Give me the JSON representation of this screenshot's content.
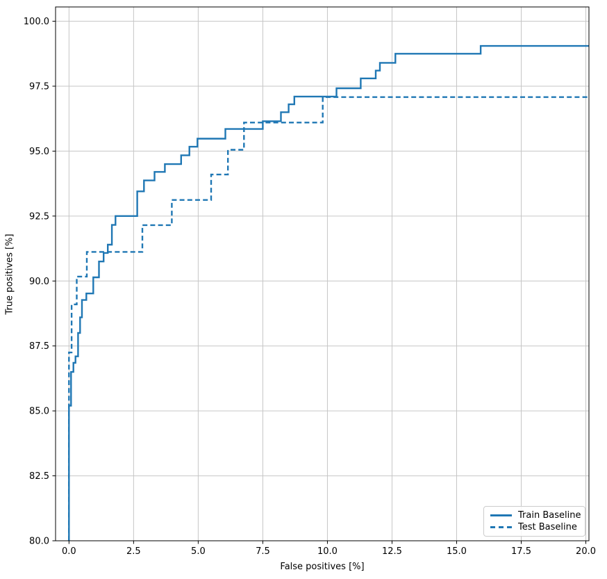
{
  "chart_data": {
    "type": "line",
    "subtype": "step-post",
    "title": "",
    "xlabel": "False positives [%]",
    "ylabel": "True positives [%]",
    "xlim": [
      -0.52,
      20.12
    ],
    "ylim": [
      80.0,
      100.55
    ],
    "grid": true,
    "legend_position": "lower right",
    "line_color": "#1f77b4",
    "grid_color": "#c6c6c6",
    "spine_color": "#000000",
    "x_ticks": [
      0.0,
      2.5,
      5.0,
      7.5,
      10.0,
      12.5,
      15.0,
      17.5,
      20.0
    ],
    "x_tick_labels": [
      "0.0",
      "2.5",
      "5.0",
      "7.5",
      "10.0",
      "12.5",
      "15.0",
      "17.5",
      "20.0"
    ],
    "y_ticks": [
      80.0,
      82.5,
      85.0,
      87.5,
      90.0,
      92.5,
      95.0,
      97.5,
      100.0
    ],
    "y_tick_labels": [
      "80.0",
      "82.5",
      "85.0",
      "87.5",
      "90.0",
      "92.5",
      "95.0",
      "97.5",
      "100.0"
    ],
    "series": [
      {
        "name": "Train Baseline",
        "style": "solid",
        "color": "#1f77b4",
        "points": [
          [
            0.0,
            80.0
          ],
          [
            0.0,
            85.2
          ],
          [
            0.08,
            85.2
          ],
          [
            0.08,
            86.5
          ],
          [
            0.17,
            86.5
          ],
          [
            0.17,
            86.85
          ],
          [
            0.25,
            86.85
          ],
          [
            0.25,
            87.1
          ],
          [
            0.35,
            87.1
          ],
          [
            0.35,
            88.0
          ],
          [
            0.43,
            88.0
          ],
          [
            0.43,
            88.6
          ],
          [
            0.5,
            88.6
          ],
          [
            0.5,
            89.27
          ],
          [
            0.67,
            89.27
          ],
          [
            0.67,
            89.52
          ],
          [
            0.94,
            89.52
          ],
          [
            0.94,
            90.14
          ],
          [
            1.16,
            90.14
          ],
          [
            1.16,
            90.75
          ],
          [
            1.34,
            90.75
          ],
          [
            1.34,
            91.08
          ],
          [
            1.5,
            91.08
          ],
          [
            1.5,
            91.4
          ],
          [
            1.66,
            91.4
          ],
          [
            1.66,
            92.16
          ],
          [
            1.8,
            92.16
          ],
          [
            1.8,
            92.5
          ],
          [
            2.64,
            92.5
          ],
          [
            2.64,
            93.45
          ],
          [
            2.9,
            93.45
          ],
          [
            2.9,
            93.87
          ],
          [
            3.31,
            93.87
          ],
          [
            3.31,
            94.2
          ],
          [
            3.71,
            94.2
          ],
          [
            3.71,
            94.5
          ],
          [
            4.34,
            94.5
          ],
          [
            4.34,
            94.84
          ],
          [
            4.66,
            94.84
          ],
          [
            4.66,
            95.17
          ],
          [
            4.97,
            95.17
          ],
          [
            4.97,
            95.48
          ],
          [
            6.05,
            95.48
          ],
          [
            6.05,
            95.85
          ],
          [
            7.5,
            95.85
          ],
          [
            7.5,
            96.15
          ],
          [
            8.2,
            96.15
          ],
          [
            8.2,
            96.5
          ],
          [
            8.5,
            96.5
          ],
          [
            8.5,
            96.8
          ],
          [
            8.72,
            96.8
          ],
          [
            8.72,
            97.1
          ],
          [
            10.35,
            97.1
          ],
          [
            10.35,
            97.42
          ],
          [
            11.29,
            97.42
          ],
          [
            11.29,
            97.8
          ],
          [
            11.87,
            97.8
          ],
          [
            11.87,
            98.1
          ],
          [
            12.03,
            98.1
          ],
          [
            12.03,
            98.4
          ],
          [
            12.63,
            98.4
          ],
          [
            12.63,
            98.75
          ],
          [
            15.93,
            98.75
          ],
          [
            15.93,
            99.05
          ],
          [
            20.12,
            99.05
          ]
        ]
      },
      {
        "name": "Test Baseline",
        "style": "dashed",
        "color": "#1f77b4",
        "points": [
          [
            0.0,
            80.0
          ],
          [
            0.0,
            87.25
          ],
          [
            0.1,
            87.25
          ],
          [
            0.1,
            89.1
          ],
          [
            0.3,
            89.1
          ],
          [
            0.3,
            90.17
          ],
          [
            0.69,
            90.17
          ],
          [
            0.69,
            91.12
          ],
          [
            2.84,
            91.12
          ],
          [
            2.84,
            92.15
          ],
          [
            3.98,
            92.15
          ],
          [
            3.98,
            93.12
          ],
          [
            5.5,
            93.12
          ],
          [
            5.5,
            94.1
          ],
          [
            6.15,
            94.1
          ],
          [
            6.15,
            95.05
          ],
          [
            6.77,
            95.05
          ],
          [
            6.77,
            96.1
          ],
          [
            9.82,
            96.1
          ],
          [
            9.82,
            97.08
          ],
          [
            20.12,
            97.08
          ]
        ]
      }
    ]
  },
  "legend": {
    "items": [
      {
        "label": "Train Baseline"
      },
      {
        "label": "Test Baseline"
      }
    ]
  }
}
